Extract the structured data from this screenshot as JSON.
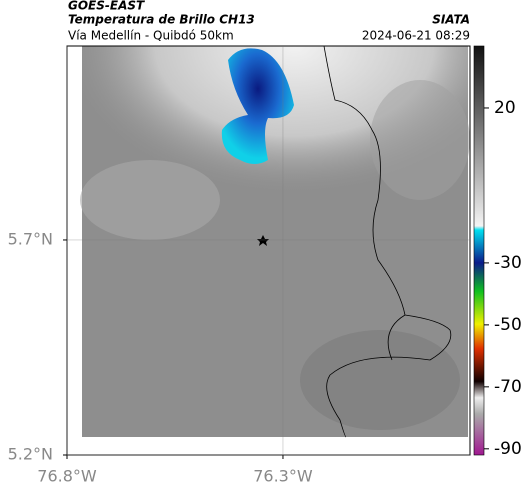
{
  "header": {
    "satellite": "GOES-EAST",
    "product": "Temperatura de Brillo CH13",
    "region": "Vía Medellín - Quibdó 50km",
    "source": "SIATA",
    "datetime": "2024-06-21 08:29"
  },
  "map": {
    "xlim": [
      -76.8,
      -75.867
    ],
    "ylim": [
      5.2,
      6.151
    ],
    "xticks": [
      {
        "value": -76.8,
        "label": "76.8°W"
      },
      {
        "value": -76.3,
        "label": "76.3°W"
      }
    ],
    "yticks": [
      {
        "value": 5.2,
        "label": "5.2°N"
      },
      {
        "value": 5.7,
        "label": "5.7°N"
      }
    ],
    "colorbar": {
      "lim": [
        -92,
        40
      ],
      "ticks": [
        20,
        -30,
        -50,
        -70,
        -90
      ]
    }
  }
}
